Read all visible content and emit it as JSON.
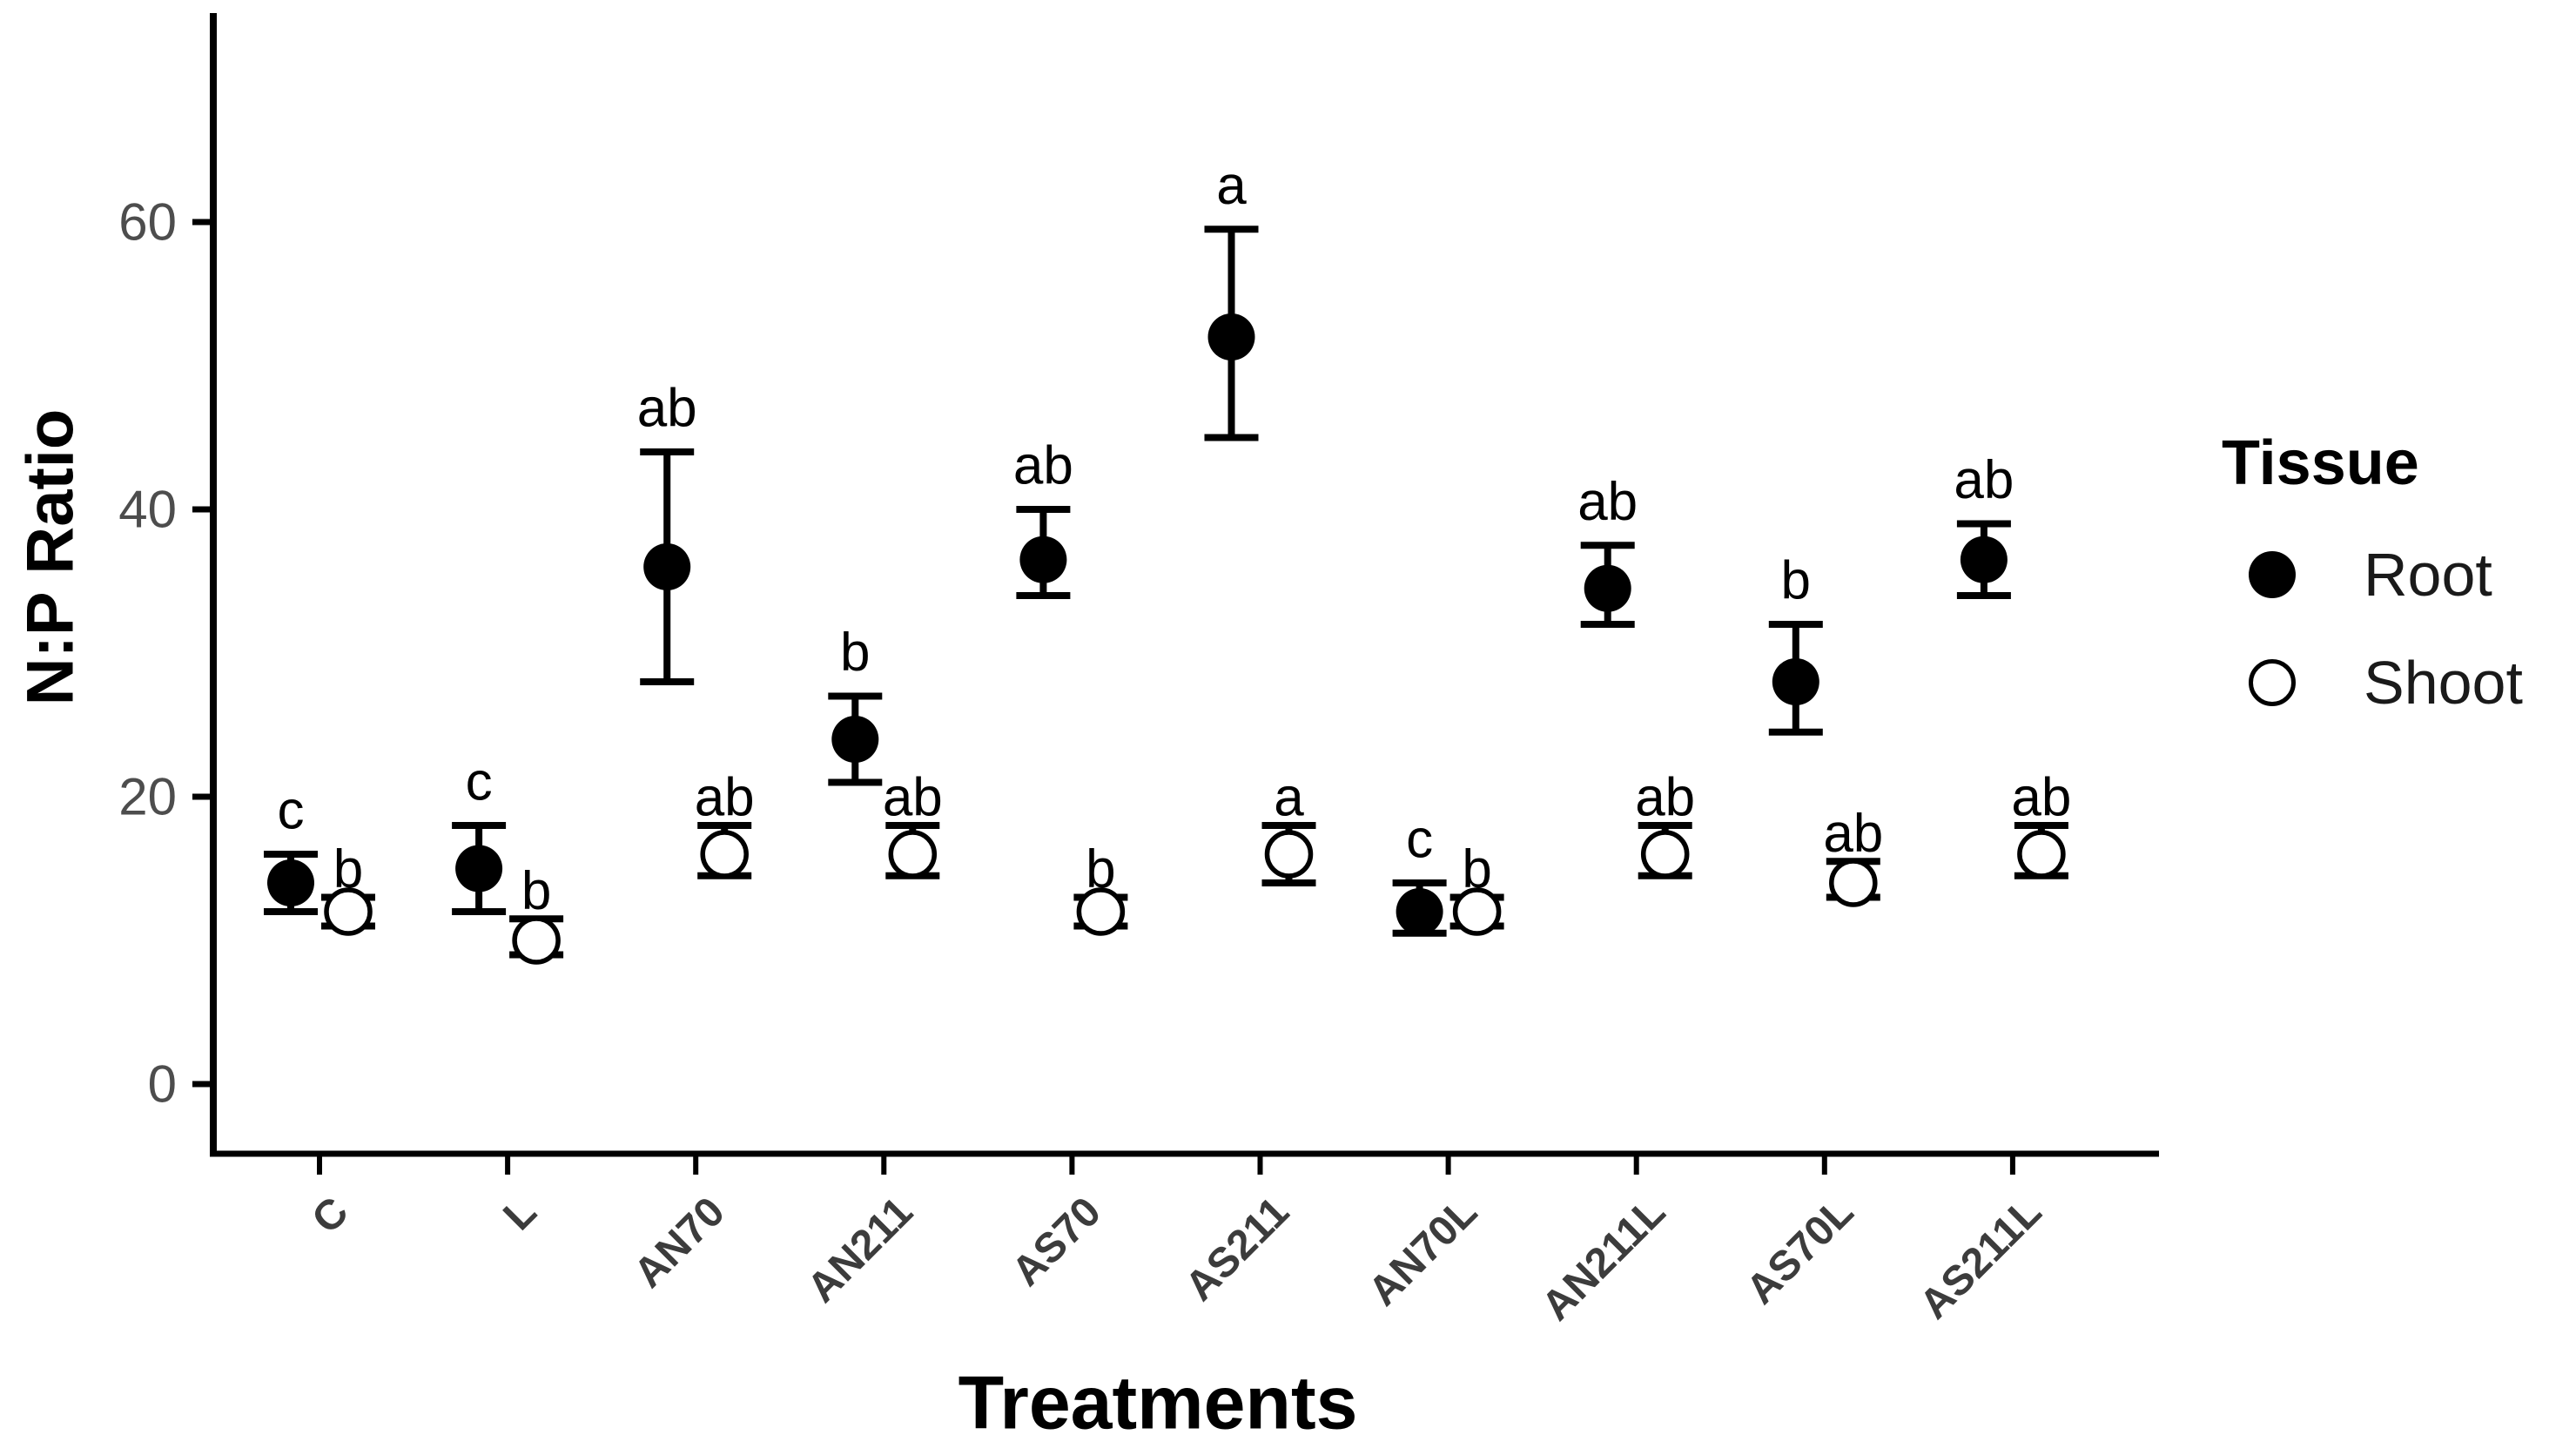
{
  "chart": {
    "background": "#ffffff",
    "axis_color": "#000000",
    "y_tick_label_color": "#4d4d4d",
    "x_tick_label_color": "#3c3c3c",
    "point_color": "#000000"
  },
  "chart_data": {
    "type": "scatter",
    "title": "",
    "xlabel": "Treatments",
    "ylabel": "N:P Ratio",
    "legend": {
      "title": "Tissue",
      "position": "right"
    },
    "categories": [
      "C",
      "L",
      "AN70",
      "AN211",
      "AS70",
      "AS211",
      "AN70L",
      "AN211L",
      "AS70L",
      "AS211L"
    ],
    "yticks": [
      0,
      20,
      40,
      60
    ],
    "ylim": [
      -5,
      73
    ],
    "grid": false,
    "series": [
      {
        "name": "Root",
        "marker": "filled-circle",
        "color": "#000000",
        "values": [
          14,
          15,
          36,
          24,
          36.5,
          52,
          12,
          34.5,
          28,
          36.5
        ],
        "err_low": [
          12,
          12,
          28,
          21,
          34,
          45,
          10.5,
          32,
          24.5,
          34
        ],
        "err_high": [
          16,
          18,
          44,
          27,
          40,
          59.5,
          14,
          37.5,
          32,
          39
        ],
        "letters": [
          "c",
          "c",
          "ab",
          "b",
          "ab",
          "a",
          "c",
          "ab",
          "b",
          "ab"
        ]
      },
      {
        "name": "Shoot",
        "marker": "open-circle",
        "color": "#000000",
        "values": [
          12,
          10,
          16,
          16,
          12,
          16,
          12,
          16,
          14,
          16
        ],
        "err_low": [
          11,
          9,
          14.5,
          14.5,
          11,
          14,
          11,
          14.5,
          13,
          14.5
        ],
        "err_high": [
          13,
          11.5,
          18,
          18,
          13,
          18,
          13,
          18,
          15.5,
          18
        ],
        "letters": [
          "b",
          "b",
          "ab",
          "ab",
          "b",
          "a",
          "b",
          "ab",
          "ab",
          "ab"
        ]
      }
    ]
  }
}
